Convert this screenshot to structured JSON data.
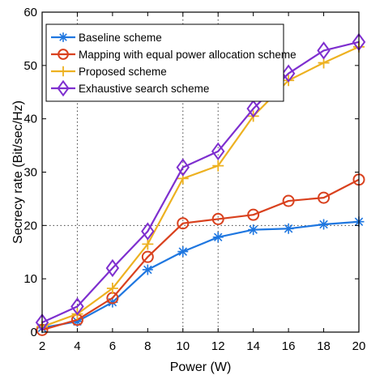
{
  "chart_data": {
    "type": "line",
    "title": "",
    "xlabel": "Power (W)",
    "ylabel": "Secrecy rate  (Bit/sec/Hz)",
    "xlim": [
      2,
      20
    ],
    "ylim": [
      0,
      60
    ],
    "xticks": [
      2,
      4,
      6,
      8,
      10,
      12,
      14,
      16,
      18,
      20
    ],
    "yticks": [
      0,
      10,
      20,
      30,
      40,
      50,
      60
    ],
    "x": [
      2,
      4,
      6,
      8,
      10,
      12,
      14,
      16,
      18,
      20
    ],
    "reference_lines": {
      "vertical_x": [
        4,
        10,
        12
      ],
      "horizontal_y": [
        20
      ]
    },
    "legend_position": "top-left",
    "series": [
      {
        "name": "Baseline scheme",
        "color": "#1f77e0",
        "marker": "asterisk",
        "values": [
          0.8,
          2.0,
          5.6,
          11.7,
          15.1,
          17.8,
          19.2,
          19.4,
          20.2,
          20.7
        ]
      },
      {
        "name": "Mapping with equal power allocation scheme",
        "color": "#d9411e",
        "marker": "circle",
        "values": [
          0.4,
          2.3,
          6.4,
          14.1,
          20.4,
          21.2,
          22.0,
          24.6,
          25.2,
          28.6
        ]
      },
      {
        "name": "Proposed scheme",
        "color": "#edb120",
        "marker": "plus",
        "values": [
          1.0,
          3.4,
          8.2,
          16.5,
          28.8,
          31.2,
          40.5,
          47.2,
          50.5,
          53.5
        ]
      },
      {
        "name": "Exhaustive search scheme",
        "color": "#7e2fcf",
        "marker": "diamond",
        "values": [
          1.8,
          4.8,
          12.0,
          18.9,
          30.9,
          33.9,
          41.9,
          48.5,
          52.8,
          54.4
        ]
      }
    ]
  }
}
